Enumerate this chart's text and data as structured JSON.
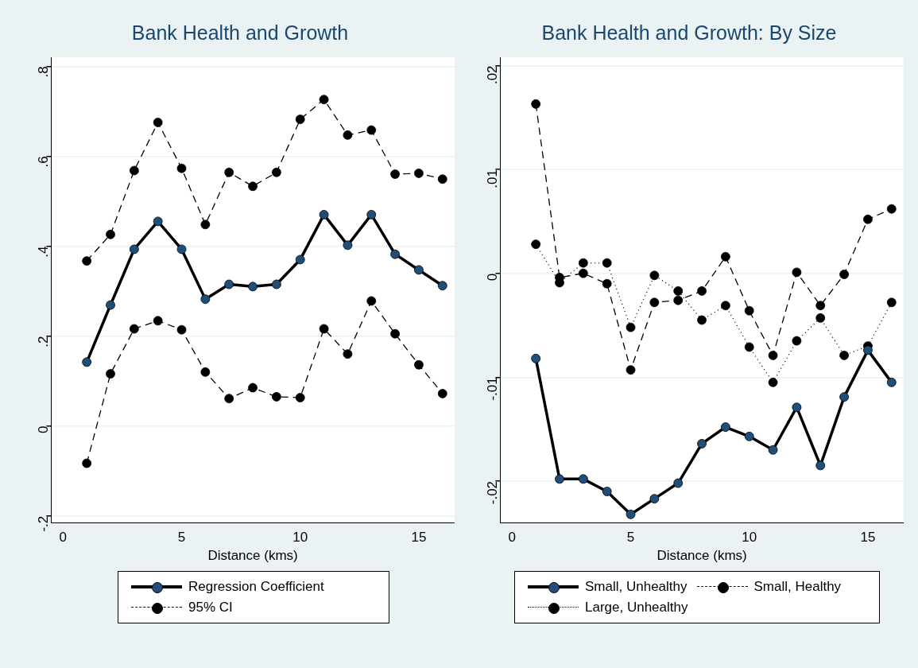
{
  "chart_data": [
    {
      "type": "line",
      "title": "Bank Health and Growth",
      "xlabel": "Distance (kms)",
      "x": [
        1,
        2,
        3,
        4,
        5,
        6,
        7,
        8,
        9,
        10,
        11,
        12,
        13,
        14,
        15,
        16
      ],
      "xlim": [
        -0.5,
        16.5
      ],
      "xticks": [
        0,
        5,
        10,
        15
      ],
      "ylim": [
        -0.215,
        0.82
      ],
      "yticks": [
        {
          "value": -0.2,
          "label": "-.2"
        },
        0,
        {
          "value": 0.2,
          "label": ".2"
        },
        {
          "value": 0.4,
          "label": ".4"
        },
        {
          "value": 0.6,
          "label": ".6"
        },
        {
          "value": 0.8,
          "label": ".8"
        }
      ],
      "grid": "y",
      "legend": "bottom",
      "marker": "circle",
      "series": [
        {
          "name": "Regression Coefficient",
          "color": "#1f4e79",
          "line_style": "solid",
          "values": [
            0.142,
            0.269,
            0.393,
            0.455,
            0.393,
            0.282,
            0.315,
            0.31,
            0.315,
            0.37,
            0.47,
            0.402,
            0.47,
            0.382,
            0.347,
            0.312
          ]
        },
        {
          "name": "95% CI",
          "color": "#000000",
          "line_style": "dashed",
          "values": [
            0.367,
            0.426,
            0.568,
            0.675,
            0.573,
            0.448,
            0.564,
            0.533,
            0.564,
            0.682,
            0.726,
            0.647,
            0.658,
            0.56,
            0.562,
            0.549
          ]
        },
        {
          "color": "#000000",
          "line_style": "dashed",
          "values": [
            -0.083,
            0.116,
            0.216,
            0.234,
            0.214,
            0.12,
            0.061,
            0.085,
            0.065,
            0.063,
            0.216,
            0.16,
            0.278,
            0.205,
            0.136,
            0.072
          ]
        }
      ]
    },
    {
      "type": "line",
      "title": "Bank Health and Growth: By Size",
      "xlabel": "Distance (kms)",
      "x": [
        1,
        2,
        3,
        4,
        5,
        6,
        7,
        8,
        9,
        10,
        11,
        12,
        13,
        14,
        15,
        16
      ],
      "xlim": [
        -0.5,
        16.5
      ],
      "xticks": [
        0,
        5,
        10,
        15
      ],
      "ylim": [
        -0.024,
        0.0208
      ],
      "yticks": [
        {
          "value": -0.02,
          "label": "-.02"
        },
        {
          "value": -0.01,
          "label": "-.01"
        },
        0,
        {
          "value": 0.01,
          "label": ".01"
        },
        {
          "value": 0.02,
          "label": ".02"
        }
      ],
      "grid": "y",
      "legend": "bottom",
      "marker": "circle",
      "series": [
        {
          "name": "Small, Unhealthy",
          "color": "#1f4e79",
          "line_style": "solid",
          "values": [
            -0.0082,
            -0.0198,
            -0.0198,
            -0.021,
            -0.0232,
            -0.0217,
            -0.0202,
            -0.0164,
            -0.0148,
            -0.0157,
            -0.017,
            -0.0129,
            -0.0185,
            -0.0119,
            -0.0074,
            -0.0105
          ]
        },
        {
          "name": "Small, Healthy",
          "color": "#000000",
          "line_style": "dashed",
          "values": [
            0.0163,
            -0.0004,
            0.0,
            -0.001,
            -0.0093,
            -0.0028,
            -0.0026,
            -0.0017,
            0.0016,
            -0.0036,
            -0.0079,
            0.0001,
            -0.0031,
            -0.0001,
            0.0052,
            0.0062
          ]
        },
        {
          "name": "Large, Unhealthy",
          "color": "#000000",
          "line_style": "dotted",
          "values": [
            0.0028,
            -0.0009,
            0.001,
            0.001,
            -0.0052,
            -0.0002,
            -0.0017,
            -0.0045,
            -0.0031,
            -0.0071,
            -0.0105,
            -0.0065,
            -0.0043,
            -0.0079,
            -0.007,
            -0.0028
          ]
        }
      ]
    }
  ]
}
